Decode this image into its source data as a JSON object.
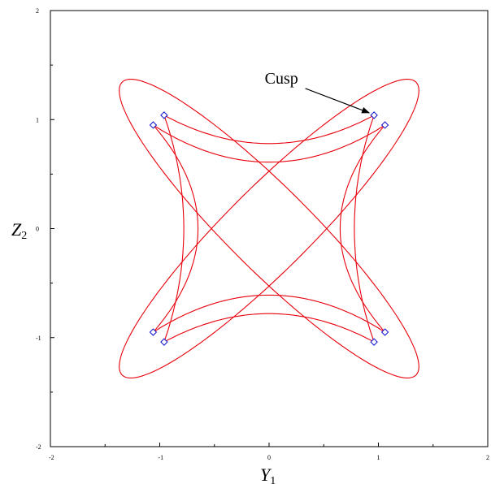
{
  "chart_data": {
    "type": "line",
    "title": "",
    "xlabel": {
      "base": "Y",
      "sub": "1"
    },
    "ylabel": {
      "base": "Z",
      "sub": "2"
    },
    "xlim": [
      -2,
      2
    ],
    "ylim": [
      -2,
      2
    ],
    "xticks": [
      {
        "value": -2,
        "label": "-2"
      },
      {
        "value": -1,
        "label": "-1"
      },
      {
        "value": 0,
        "label": "0"
      },
      {
        "value": 1,
        "label": "1"
      },
      {
        "value": 2,
        "label": "2"
      }
    ],
    "yticks": [
      {
        "value": -2,
        "label": "-2"
      },
      {
        "value": -1,
        "label": "-1"
      },
      {
        "value": 0,
        "label": "0"
      },
      {
        "value": 1,
        "label": "1"
      },
      {
        "value": 2,
        "label": "2"
      }
    ],
    "grid": false,
    "series": [
      {
        "kind": "ellipse",
        "center": [
          0,
          0
        ],
        "semi_major": 1.9,
        "semi_minor": 0.38,
        "angle_deg": 45,
        "color": "#e8000b"
      },
      {
        "kind": "ellipse",
        "center": [
          0,
          0
        ],
        "semi_major": 1.9,
        "semi_minor": 0.38,
        "angle_deg": -45,
        "color": "#e8000b"
      },
      {
        "kind": "cusp-curve",
        "side": "top",
        "points": [
          [
            -0.96,
            1.04
          ],
          [
            0,
            0.78
          ],
          [
            0.96,
            1.04
          ]
        ],
        "color": "#e8000b"
      },
      {
        "kind": "cusp-curve",
        "side": "top",
        "points": [
          [
            -1.06,
            0.95
          ],
          [
            0,
            0.61
          ],
          [
            1.06,
            0.95
          ]
        ],
        "color": "#e8000b"
      },
      {
        "kind": "cusp-curve",
        "side": "bottom",
        "points": [
          [
            -0.96,
            -1.04
          ],
          [
            0,
            -0.78
          ],
          [
            0.96,
            -1.04
          ]
        ],
        "color": "#e8000b"
      },
      {
        "kind": "cusp-curve",
        "side": "bottom",
        "points": [
          [
            -1.06,
            -0.95
          ],
          [
            0,
            -0.61
          ],
          [
            1.06,
            -0.95
          ]
        ],
        "color": "#e8000b"
      },
      {
        "kind": "cusp-curve",
        "side": "left",
        "points": [
          [
            -1.06,
            0.95
          ],
          [
            -0.65,
            0
          ],
          [
            -1.06,
            -0.95
          ]
        ],
        "color": "#e8000b"
      },
      {
        "kind": "cusp-curve",
        "side": "left",
        "points": [
          [
            -0.96,
            1.04
          ],
          [
            -0.78,
            0
          ],
          [
            -0.96,
            -1.04
          ]
        ],
        "color": "#e8000b"
      },
      {
        "kind": "cusp-curve",
        "side": "right",
        "points": [
          [
            1.06,
            0.95
          ],
          [
            0.65,
            0
          ],
          [
            1.06,
            -0.95
          ]
        ],
        "color": "#e8000b"
      },
      {
        "kind": "cusp-curve",
        "side": "right",
        "points": [
          [
            0.96,
            1.04
          ],
          [
            0.78,
            0
          ],
          [
            0.96,
            -1.04
          ]
        ],
        "color": "#e8000b"
      }
    ],
    "markers": {
      "shape": "diamond",
      "color": "#1010d0",
      "points": [
        [
          -0.96,
          1.04
        ],
        [
          -1.06,
          0.95
        ],
        [
          0.96,
          1.04
        ],
        [
          1.06,
          0.95
        ],
        [
          -1.06,
          -0.95
        ],
        [
          -0.96,
          -1.04
        ],
        [
          0.96,
          -1.04
        ],
        [
          1.06,
          -0.95
        ]
      ]
    },
    "annotations": [
      {
        "text": "Cusp",
        "text_at": [
          -0.04,
          1.33
        ],
        "arrow_to": [
          0.96,
          1.04
        ]
      }
    ]
  }
}
